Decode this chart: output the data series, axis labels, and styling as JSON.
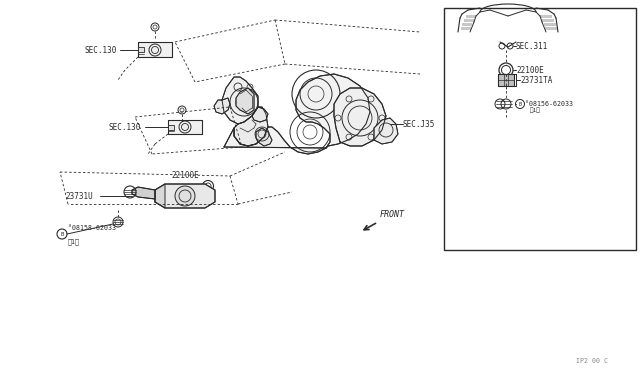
{
  "bg_color": "#ffffff",
  "fig_width": 6.4,
  "fig_height": 3.72,
  "dpi": 100,
  "watermark": "IP2 00 C",
  "labels": {
    "sec130_top": "SEC.130",
    "sec130_mid": "SEC.130",
    "sec135": "SEC.J35",
    "sec311": "SEC.311",
    "part_22100E_main": "22100E",
    "part_23731U": "23731U",
    "part_08158_line1": "°08158-62033",
    "part_08158_line2": "（1）",
    "part_22100E_inset": "22100E",
    "part_23731TA": "23731TA",
    "part_08156_line1": "°08156-62033",
    "part_08156_line2": "（1）",
    "front": "FRONT"
  },
  "font_size_label": 5.5,
  "font_size_small": 4.8,
  "line_color": "#2a2a2a",
  "dashed_color": "#2a2a2a"
}
